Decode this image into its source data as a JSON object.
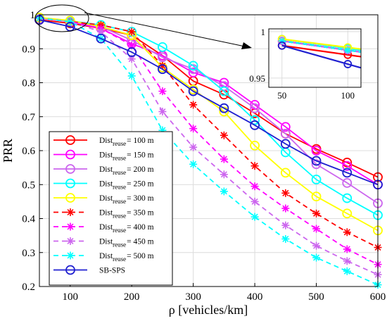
{
  "chart_data": {
    "type": "line",
    "xlabel": "ρ [vehicles/km]",
    "ylabel": "PRR",
    "xlim": [
      50,
      600
    ],
    "ylim": [
      0.2,
      1.0
    ],
    "x_ticks": [
      "100",
      "200",
      "300",
      "400",
      "500",
      "600"
    ],
    "y_ticks": [
      "0.2",
      "0.3",
      "0.4",
      "0.5",
      "0.6",
      "0.7",
      "0.8",
      "0.9",
      "1"
    ],
    "grid": true,
    "legend_position": "bottom-left",
    "x": [
      50,
      100,
      150,
      200,
      250,
      300,
      350,
      400,
      450,
      500,
      550,
      600
    ],
    "series": [
      {
        "name": "Dist_reuse = 100 m",
        "legend_main": "Dist",
        "legend_sub": "reuse",
        "legend_tail": "= 100 m",
        "color": "#ff0000",
        "dash": "solid",
        "marker": "circle",
        "values": [
          0.985,
          0.975,
          0.96,
          0.94,
          0.88,
          0.805,
          0.765,
          0.71,
          0.65,
          0.605,
          0.565,
          0.522
        ]
      },
      {
        "name": "Dist_reuse = 150 m",
        "legend_main": "Dist",
        "legend_sub": "reuse",
        "legend_tail": "= 150 m",
        "color": "#ff00ff",
        "dash": "solid",
        "marker": "circle",
        "values": [
          0.99,
          0.98,
          0.96,
          0.915,
          0.88,
          0.83,
          0.8,
          0.735,
          0.67,
          0.6,
          0.555,
          0.5
        ]
      },
      {
        "name": "Dist_reuse = 200 m",
        "legend_main": "Dist",
        "legend_sub": "reuse",
        "legend_tail": "= 200 m",
        "color": "#cc66ee",
        "dash": "solid",
        "marker": "circle",
        "values": [
          0.99,
          0.98,
          0.965,
          0.925,
          0.875,
          0.84,
          0.79,
          0.725,
          0.65,
          0.56,
          0.505,
          0.445
        ]
      },
      {
        "name": "Dist_reuse = 250 m",
        "legend_main": "Dist",
        "legend_sub": "reuse",
        "legend_tail": "= 250 m",
        "color": "#00ffff",
        "dash": "solid",
        "marker": "circle",
        "values": [
          0.992,
          0.982,
          0.97,
          0.95,
          0.905,
          0.85,
          0.775,
          0.69,
          0.595,
          0.515,
          0.46,
          0.41
        ]
      },
      {
        "name": "Dist_reuse = 300 m",
        "legend_main": "Dist",
        "legend_sub": "reuse",
        "legend_tail": "= 300 m",
        "color": "#ffff00",
        "dash": "solid",
        "marker": "circle",
        "values": [
          0.992,
          0.983,
          0.965,
          0.94,
          0.845,
          0.78,
          0.715,
          0.615,
          0.535,
          0.465,
          0.415,
          0.365
        ]
      },
      {
        "name": "Dist_reuse = 350 m",
        "legend_main": "Dist",
        "legend_sub": "reuse",
        "legend_tail": "= 350 m",
        "color": "#ff0000",
        "dash": "dashed",
        "marker": "star",
        "values": [
          0.99,
          0.98,
          0.97,
          0.95,
          0.85,
          0.735,
          0.645,
          0.555,
          0.475,
          0.415,
          0.36,
          0.315
        ]
      },
      {
        "name": "Dist_reuse = 400 m",
        "legend_main": "Dist",
        "legend_sub": "reuse",
        "legend_tail": "= 400 m",
        "color": "#ff00ff",
        "dash": "dashed",
        "marker": "star",
        "values": [
          0.99,
          0.98,
          0.96,
          0.91,
          0.775,
          0.665,
          0.575,
          0.495,
          0.43,
          0.37,
          0.31,
          0.265
        ]
      },
      {
        "name": "Dist_reuse = 450 m",
        "legend_main": "Dist",
        "legend_sub": "reuse",
        "legend_tail": "= 450 m",
        "color": "#cc66ee",
        "dash": "dashed",
        "marker": "star",
        "values": [
          0.99,
          0.98,
          0.95,
          0.87,
          0.715,
          0.61,
          0.53,
          0.45,
          0.38,
          0.32,
          0.275,
          0.235
        ]
      },
      {
        "name": "Dist_reuse = 500 m",
        "legend_main": "Dist",
        "legend_sub": "reuse",
        "legend_tail": "= 500 m",
        "color": "#00ffff",
        "dash": "dashed",
        "marker": "star",
        "values": [
          0.99,
          0.98,
          0.93,
          0.82,
          0.66,
          0.56,
          0.48,
          0.405,
          0.34,
          0.285,
          0.245,
          0.205
        ]
      },
      {
        "name": "SB-SPS",
        "legend_main": "SB-SPS",
        "legend_sub": "",
        "legend_tail": "",
        "color": "#1f1fd0",
        "dash": "solid",
        "marker": "circle",
        "values": [
          0.985,
          0.965,
          0.93,
          0.89,
          0.84,
          0.775,
          0.725,
          0.675,
          0.62,
          0.57,
          0.535,
          0.5
        ]
      }
    ],
    "inset": {
      "x_ticks": [
        "50",
        "100"
      ],
      "y_ticks": [
        "0.95",
        "1"
      ],
      "xlim": [
        40,
        110
      ],
      "ylim": [
        0.94,
        1.003
      ]
    }
  }
}
